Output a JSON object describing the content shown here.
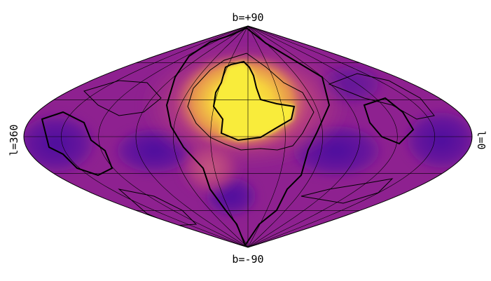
{
  "map": {
    "projection": "sinusoidal",
    "coordinate_system": "galactic",
    "colormap": "plasma",
    "labels": {
      "top": "b=+90",
      "bottom": "b=-90",
      "left": "l=360",
      "right": "l=0"
    },
    "graticule": {
      "latitude_step_deg": 30,
      "longitude_step_deg": 30,
      "color": "#000000"
    },
    "colors": {
      "low": "#3b0a8f",
      "mid": "#9c2a8c",
      "high": "#f7e83a",
      "background": "#ffffff"
    }
  }
}
